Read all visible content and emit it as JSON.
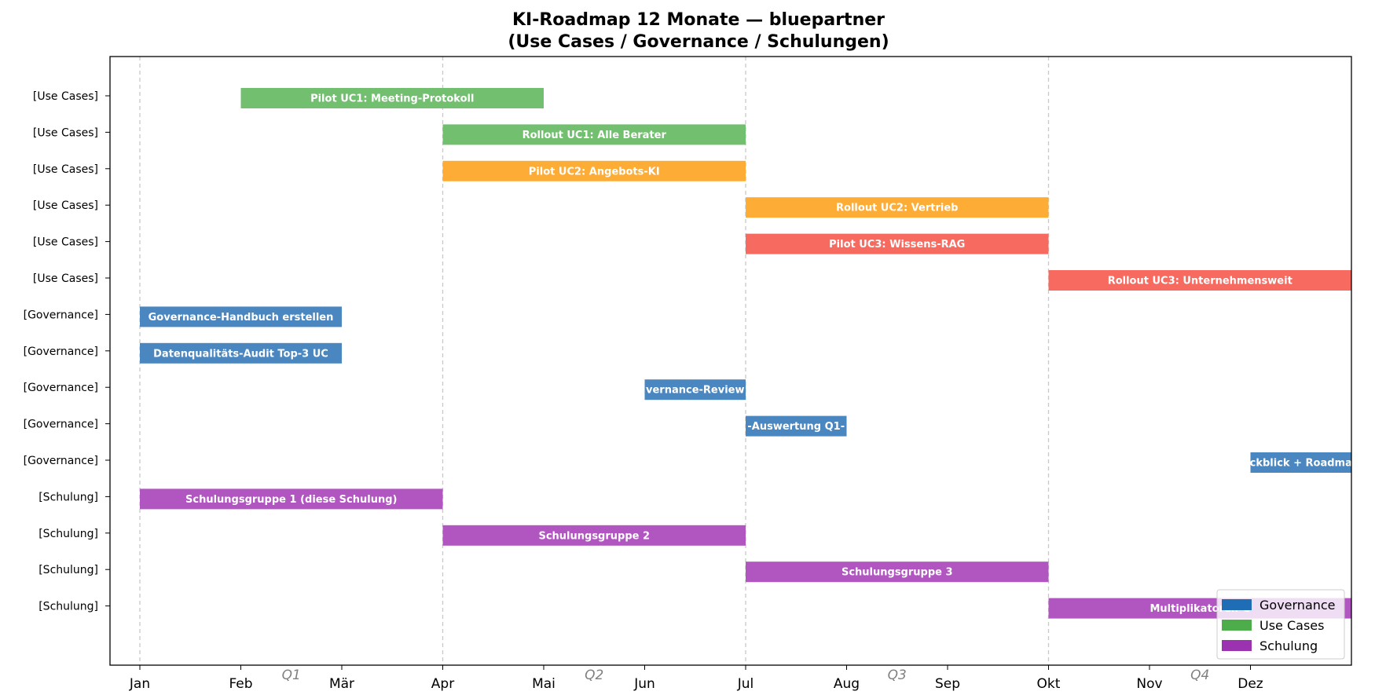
{
  "chart_data": {
    "type": "gantt",
    "title": [
      "KI-Roadmap 12 Monate — bluepartner",
      "(Use Cases / Governance / Schulungen)"
    ],
    "x_unit": "month",
    "xlim": [
      0,
      12
    ],
    "x_ticks": [
      {
        "value": 0,
        "label": "Jan"
      },
      {
        "value": 1,
        "label": "Feb"
      },
      {
        "value": 2,
        "label": "Mär"
      },
      {
        "value": 3,
        "label": "Apr"
      },
      {
        "value": 4,
        "label": "Mai"
      },
      {
        "value": 5,
        "label": "Jun"
      },
      {
        "value": 6,
        "label": "Jul"
      },
      {
        "value": 7,
        "label": "Aug"
      },
      {
        "value": 8,
        "label": "Sep"
      },
      {
        "value": 9,
        "label": "Okt"
      },
      {
        "value": 10,
        "label": "Nov"
      },
      {
        "value": 11,
        "label": "Dez"
      }
    ],
    "quarter_lines": [
      0,
      3,
      6,
      9
    ],
    "quarter_labels": [
      {
        "value": 1.5,
        "label": "Q1"
      },
      {
        "value": 4.5,
        "label": "Q2"
      },
      {
        "value": 7.5,
        "label": "Q3"
      },
      {
        "value": 10.5,
        "label": "Q4"
      }
    ],
    "y_tick_labels": [
      "[Use Cases]",
      "[Use Cases]",
      "[Use Cases]",
      "[Use Cases]",
      "[Use Cases]",
      "[Use Cases]",
      "[Governance]",
      "[Governance]",
      "[Governance]",
      "[Governance]",
      "[Governance]",
      "[Schulung]",
      "[Schulung]",
      "[Schulung]",
      "[Schulung]"
    ],
    "colors": {
      "green": "#72bf6f",
      "orange": "#fdac35",
      "red": "#f76a60",
      "blue": "#4a87c0",
      "purple": "#b155c1"
    },
    "tasks": [
      {
        "label": "Pilot UC1: Meeting-Protokoll",
        "start": 1,
        "end": 4,
        "color": "green"
      },
      {
        "label": "Rollout UC1: Alle Berater",
        "start": 3,
        "end": 6,
        "color": "green"
      },
      {
        "label": "Pilot UC2: Angebots-KI",
        "start": 3,
        "end": 6,
        "color": "orange"
      },
      {
        "label": "Rollout UC2: Vertrieb",
        "start": 6,
        "end": 9,
        "color": "orange"
      },
      {
        "label": "Pilot UC3: Wissens-RAG",
        "start": 6,
        "end": 9,
        "color": "red"
      },
      {
        "label": "Rollout UC3: Unternehmensweit",
        "start": 9,
        "end": 12,
        "color": "red"
      },
      {
        "label": "Governance-Handbuch erstellen",
        "start": 0,
        "end": 2,
        "color": "blue"
      },
      {
        "label": "Datenqualitäts-Audit Top-3 UC",
        "start": 0,
        "end": 2,
        "color": "blue"
      },
      {
        "label": "vernance-Review",
        "start": 5,
        "end": 6,
        "color": "blue"
      },
      {
        "label": "-Auswertung Q1-",
        "start": 6,
        "end": 7,
        "color": "blue"
      },
      {
        "label": "ckblick + Roadma",
        "start": 11,
        "end": 12,
        "color": "blue"
      },
      {
        "label": "Schulungsgruppe 1 (diese Schulung)",
        "start": 0,
        "end": 3,
        "color": "purple"
      },
      {
        "label": "Schulungsgruppe 2",
        "start": 3,
        "end": 6,
        "color": "purple"
      },
      {
        "label": "Schulungsgruppe 3",
        "start": 6,
        "end": 9,
        "color": "purple"
      },
      {
        "label": "Multiplikatoren-C",
        "start": 9,
        "end": 12,
        "color": "purple"
      }
    ],
    "legend": {
      "placement": "lower-right",
      "entries": [
        {
          "name": "Governance",
          "color": "#1f6db5"
        },
        {
          "name": "Use Cases",
          "color": "#4cad4a"
        },
        {
          "name": "Schulung",
          "color": "#9b33b0"
        }
      ]
    }
  }
}
